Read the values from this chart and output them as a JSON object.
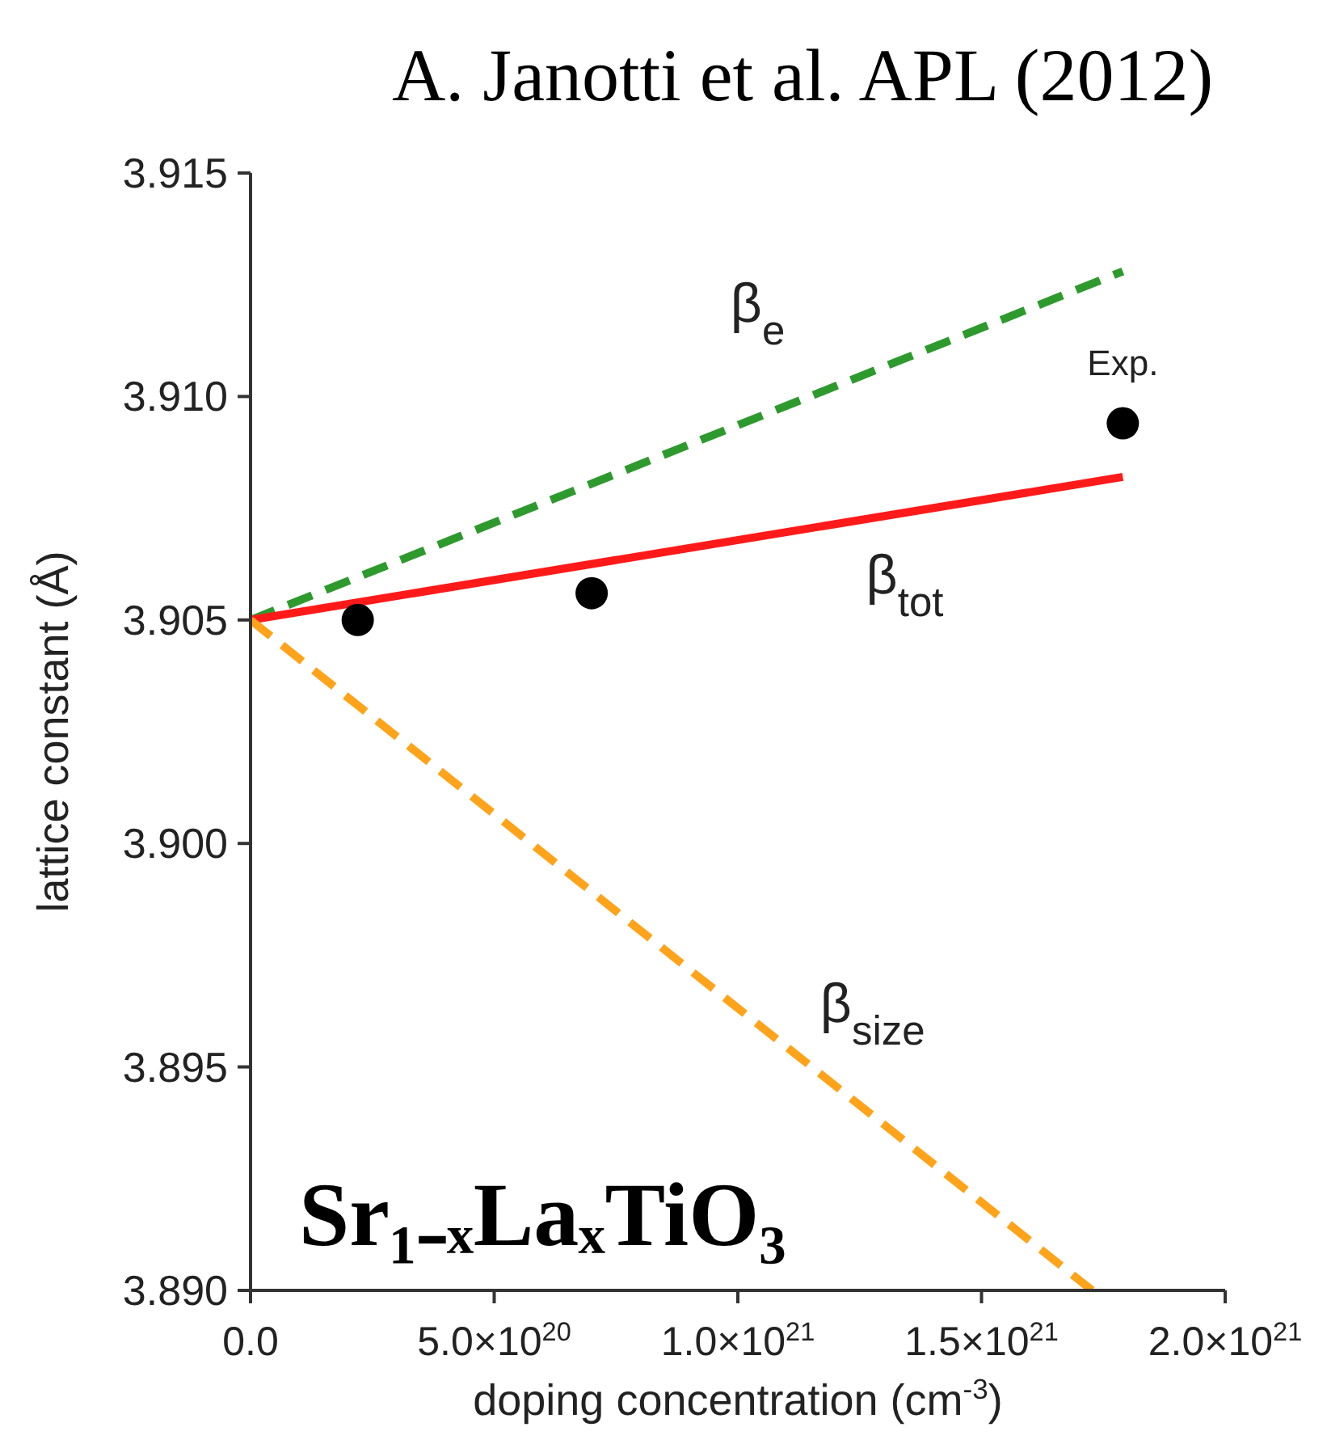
{
  "chart_data": {
    "type": "line",
    "title": "A. Janotti et al. APL (2012)",
    "xlabel": "doping concentration (cm$^{-3}$)",
    "ylabel": "lattice constant (Å)",
    "annotations": [
      "Sr₁₋ₓLaₓTiO₃"
    ],
    "xlim": [
      0,
      2e+21
    ],
    "xticks": [
      {
        "value": 0,
        "label": "0.0"
      },
      {
        "value": 5e+20,
        "label": "5.0×10$^{20}$"
      },
      {
        "value": 1e+21,
        "label": "1.0×10$^{21}$"
      },
      {
        "value": 1.5e+21,
        "label": "1.5×10$^{21}$"
      },
      {
        "value": 2e+21,
        "label": "2.0×10$^{21}$"
      }
    ],
    "ylim": [
      3.89,
      3.915
    ],
    "yticks": [
      {
        "value": 3.89,
        "label": "3.890"
      },
      {
        "value": 3.895,
        "label": "3.895"
      },
      {
        "value": 3.9,
        "label": "3.900"
      },
      {
        "value": 3.905,
        "label": "3.905"
      },
      {
        "value": 3.91,
        "label": "3.910"
      },
      {
        "value": 3.915,
        "label": "3.915"
      }
    ],
    "grid": false,
    "legend": false,
    "series": [
      {
        "name": "β$_{e}$",
        "type": "line",
        "color": "#2e9a2e",
        "line_style": "dashed",
        "marker": "none",
        "x": [
          0,
          1.79e+21
        ],
        "values": [
          3.905,
          3.9128
        ]
      },
      {
        "name": "β$_{tot}$",
        "type": "line",
        "color": "#ff1a1a",
        "line_style": "solid",
        "marker": "none",
        "x": [
          0,
          1.79e+21
        ],
        "values": [
          3.905,
          3.9082
        ]
      },
      {
        "name": "β$_{size}$",
        "type": "line",
        "color": "#ffa31a",
        "line_style": "dashed",
        "marker": "none",
        "x": [
          0,
          1.727e+21
        ],
        "values": [
          3.905,
          3.89
        ]
      },
      {
        "name": "Exp.",
        "type": "scatter",
        "color": "#000000",
        "marker": "circle",
        "x": [
          2.2e+20,
          7e+20,
          1.79e+21
        ],
        "values": [
          3.905,
          3.9056,
          3.9094
        ]
      }
    ]
  }
}
